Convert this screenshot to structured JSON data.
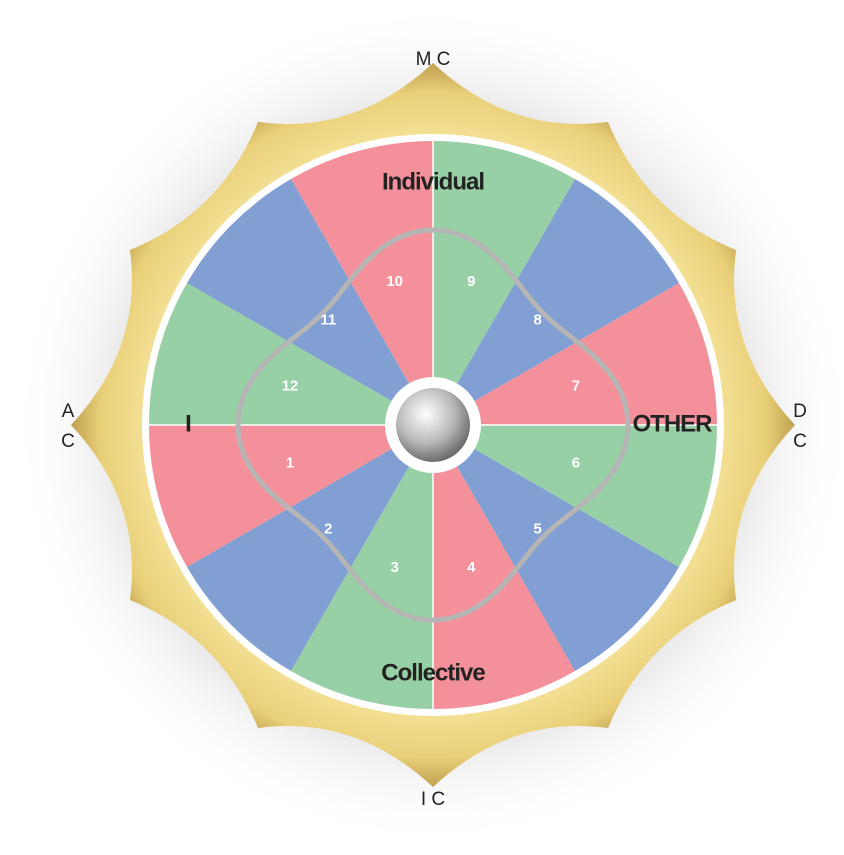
{
  "corner_labels": {
    "mc": "M C",
    "ic": "I C",
    "ac": [
      "A",
      "C"
    ],
    "dc": [
      "D",
      "C"
    ]
  },
  "quadrant_labels": {
    "top": "Individual",
    "bottom": "Collective",
    "left": "I",
    "right": "OTHER"
  },
  "houses": [
    {
      "number": 1,
      "color": "#f4909a"
    },
    {
      "number": 2,
      "color": "#819fd2"
    },
    {
      "number": 3,
      "color": "#97d0a4"
    },
    {
      "number": 4,
      "color": "#f4909a"
    },
    {
      "number": 5,
      "color": "#819fd2"
    },
    {
      "number": 6,
      "color": "#97d0a4"
    },
    {
      "number": 7,
      "color": "#f4909a"
    },
    {
      "number": 8,
      "color": "#819fd2"
    },
    {
      "number": 9,
      "color": "#97d0a4"
    },
    {
      "number": 10,
      "color": "#f4909a"
    },
    {
      "number": 11,
      "color": "#819fd2"
    },
    {
      "number": 12,
      "color": "#97d0a4"
    }
  ]
}
